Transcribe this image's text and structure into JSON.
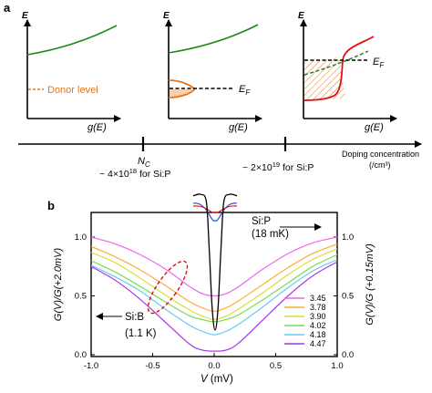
{
  "panel_a": {
    "panel_label": "a",
    "axis_e": "E",
    "axis_g": "g(E)",
    "donor_level": "Donor level",
    "fermi_label": "E",
    "fermi_sub": "F",
    "doping_axis": {
      "label_line1": "Doping concentration",
      "label_line2": "(/cm³)",
      "nc_main": "N",
      "nc_sub": "C",
      "nc_value_pre": "~ 4×10",
      "nc_value_exp": "18",
      "nc_value_post": " for Si:P",
      "high_value_pre": "~ 2×10",
      "high_value_exp": "19",
      "high_value_post": " for Si:P"
    },
    "colors": {
      "green": "#1a8a1a",
      "orange": "#e8761a",
      "red": "#dd1111"
    }
  },
  "panel_b": {
    "panel_label": "b",
    "xlabel_italic": "V",
    "xlabel_rest": " (mV)",
    "ylabel_left": "G(V)/G(+2.0mV)",
    "ylabel_right": "G(V)/G (+0.15mV)",
    "sip_line1": "Si:P",
    "sip_line2": "(18 mK)",
    "sib_line1": "Si:B",
    "sib_line2": "(1.1 K)",
    "legend": [
      {
        "label": "3.45",
        "color": "#ee66ee"
      },
      {
        "label": "3.78",
        "color": "#ffaa33"
      },
      {
        "label": "3.90",
        "color": "#dddd33"
      },
      {
        "label": "4.02",
        "color": "#77dd55"
      },
      {
        "label": "4.18",
        "color": "#66ccee"
      },
      {
        "label": "4.47",
        "color": "#aa33ee"
      }
    ]
  },
  "chart_data": {
    "type": "line",
    "xlabel": "V (mV)",
    "ylabel": "G(V)/G(+2.0mV)",
    "y2label": "G(V)/G (+0.15mV)",
    "xlim": [
      -1.0,
      1.0
    ],
    "ylim": [
      0.0,
      1.0
    ],
    "y2lim": [
      0.0,
      1.0
    ],
    "xticks": [
      "-1.0",
      "-0.5",
      "0.0",
      "0.5",
      "1.0"
    ],
    "yticks": [
      "0.0",
      "0.5",
      "1.0"
    ],
    "x": [
      -1.0,
      -0.8,
      -0.6,
      -0.4,
      -0.2,
      -0.1,
      0.0,
      0.1,
      0.2,
      0.4,
      0.6,
      0.8,
      1.0
    ],
    "series": [
      {
        "name": "3.45",
        "color": "#ee66ee",
        "values": [
          1.0,
          0.94,
          0.85,
          0.73,
          0.58,
          0.52,
          0.5,
          0.52,
          0.58,
          0.73,
          0.86,
          0.95,
          1.0
        ]
      },
      {
        "name": "3.78",
        "color": "#ffaa33",
        "values": [
          0.92,
          0.83,
          0.72,
          0.59,
          0.45,
          0.4,
          0.37,
          0.4,
          0.46,
          0.6,
          0.74,
          0.86,
          0.94
        ]
      },
      {
        "name": "3.90",
        "color": "#dddd33",
        "values": [
          0.87,
          0.78,
          0.65,
          0.51,
          0.38,
          0.33,
          0.3,
          0.33,
          0.39,
          0.53,
          0.68,
          0.81,
          0.9
        ]
      },
      {
        "name": "4.02",
        "color": "#77dd55",
        "values": [
          0.8,
          0.7,
          0.58,
          0.45,
          0.33,
          0.3,
          0.28,
          0.3,
          0.34,
          0.47,
          0.61,
          0.75,
          0.85
        ]
      },
      {
        "name": "4.18",
        "color": "#66ccee",
        "values": [
          0.76,
          0.66,
          0.54,
          0.39,
          0.25,
          0.2,
          0.17,
          0.2,
          0.26,
          0.41,
          0.57,
          0.71,
          0.81
        ]
      },
      {
        "name": "4.47",
        "color": "#aa33ee",
        "values": [
          0.75,
          0.63,
          0.47,
          0.28,
          0.09,
          0.04,
          0.03,
          0.04,
          0.1,
          0.3,
          0.5,
          0.67,
          0.79
        ]
      }
    ],
    "inset": {
      "x": [
        -0.15,
        -0.1,
        -0.06,
        -0.04,
        -0.02,
        0.0,
        0.02,
        0.04,
        0.06,
        0.1,
        0.15
      ],
      "black_values": [
        0.97,
        0.98,
        0.93,
        0.6,
        0.2,
        0.05,
        0.2,
        0.6,
        0.93,
        0.98,
        0.97
      ]
    }
  }
}
